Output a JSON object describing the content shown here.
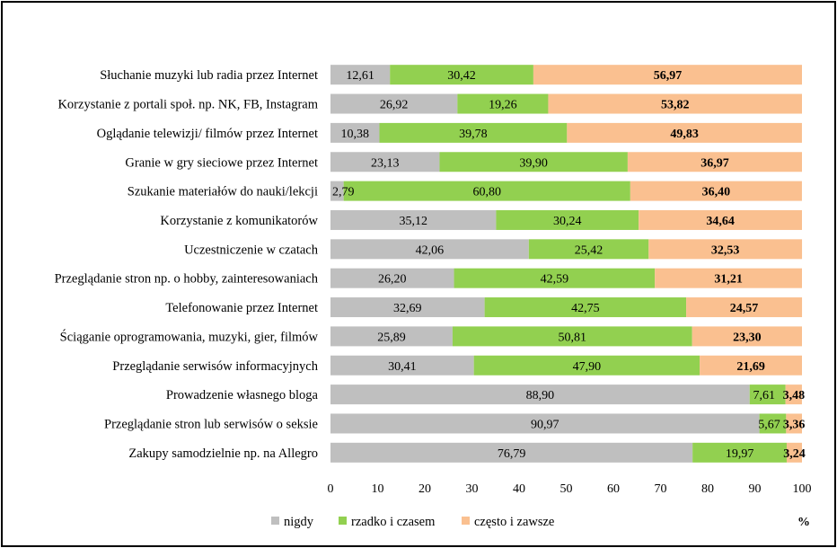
{
  "chart_data": {
    "type": "bar",
    "orientation": "horizontal",
    "stacked": true,
    "xlim": [
      0,
      100
    ],
    "xticks": [
      "0",
      "10",
      "20",
      "30",
      "40",
      "50",
      "60",
      "70",
      "80",
      "90",
      "100"
    ],
    "xlabel": "%",
    "categories": [
      "Słuchanie muzyki lub radia przez Internet",
      "Korzystanie z portali społ. np. NK, FB, Instagram",
      "Oglądanie telewizji/ filmów przez Internet",
      "Granie w gry sieciowe przez Internet",
      "Szukanie  materiałów do nauki/lekcji",
      "Korzystanie z komunikatorów",
      "Uczestniczenie w  czatach",
      "Przeglądanie stron np. o hobby, zainteresowaniach",
      "Telefonowanie przez Internet",
      "Ściąganie oprogramowania, muzyki, gier, filmów",
      "Przeglądanie serwisów informacyjnych",
      "Prowadzenie własnego bloga",
      "Przeglądanie stron lub serwisów  o seksie",
      "Zakupy samodzielnie  np. na Allegro"
    ],
    "series": [
      {
        "name": "nigdy",
        "color": "#bfbfbf",
        "values": [
          12.61,
          26.92,
          10.38,
          23.13,
          2.79,
          35.12,
          42.06,
          26.2,
          32.69,
          25.89,
          30.41,
          88.9,
          90.97,
          76.79
        ],
        "labels": [
          "12,61",
          "26,92",
          "10,38",
          "23,13",
          "2,79",
          "35,12",
          "42,06",
          "26,20",
          "32,69",
          "25,89",
          "30,41",
          "88,90",
          "90,97",
          "76,79"
        ]
      },
      {
        "name": "rzadko i czasem",
        "color": "#92d050",
        "values": [
          30.42,
          19.26,
          39.78,
          39.9,
          60.8,
          30.24,
          25.42,
          42.59,
          42.75,
          50.81,
          47.9,
          7.61,
          5.67,
          19.97
        ],
        "labels": [
          "30,42",
          "19,26",
          "39,78",
          "39,90",
          "60,80",
          "30,24",
          "25,42",
          "42,59",
          "42,75",
          "50,81",
          "47,90",
          "7,61",
          "5,67",
          "19,97"
        ]
      },
      {
        "name": "często i zawsze",
        "color": "#fac090",
        "values": [
          56.97,
          53.82,
          49.83,
          36.97,
          36.4,
          34.64,
          32.53,
          31.21,
          24.57,
          23.3,
          21.69,
          3.48,
          3.36,
          3.24
        ],
        "labels": [
          "56,97",
          "53,82",
          "49,83",
          "36,97",
          "36,40",
          "34,64",
          "32,53",
          "31,21",
          "24,57",
          "23,30",
          "21,69",
          "3,48",
          "3,36",
          "3,24"
        ]
      }
    ],
    "legend": {
      "position": "bottom-center"
    },
    "grid": false
  }
}
